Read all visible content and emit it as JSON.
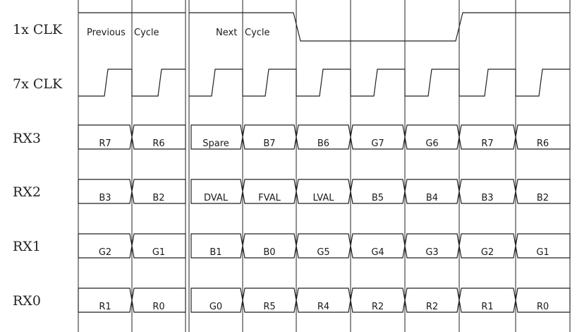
{
  "cycle_labels": [
    "Previous",
    "Cycle",
    "Next",
    "Cycle"
  ],
  "clock_rows": [
    {
      "label": "1x CLK"
    },
    {
      "label": "7x CLK"
    }
  ],
  "data_rows": [
    {
      "label": "RX3",
      "cells": [
        "R7",
        "R6",
        "Spare",
        "B7",
        "B6",
        "G7",
        "G6",
        "R7",
        "R6"
      ]
    },
    {
      "label": "RX2",
      "cells": [
        "B3",
        "B2",
        "DVAL",
        "FVAL",
        "LVAL",
        "B5",
        "B4",
        "B3",
        "B2"
      ]
    },
    {
      "label": "RX1",
      "cells": [
        "G2",
        "G1",
        "B1",
        "B0",
        "G5",
        "G4",
        "G3",
        "G2",
        "G1"
      ]
    },
    {
      "label": "RX0",
      "cells": [
        "R1",
        "R0",
        "G0",
        "R5",
        "R4",
        "R2",
        "R2",
        "R1",
        "R0"
      ]
    }
  ]
}
